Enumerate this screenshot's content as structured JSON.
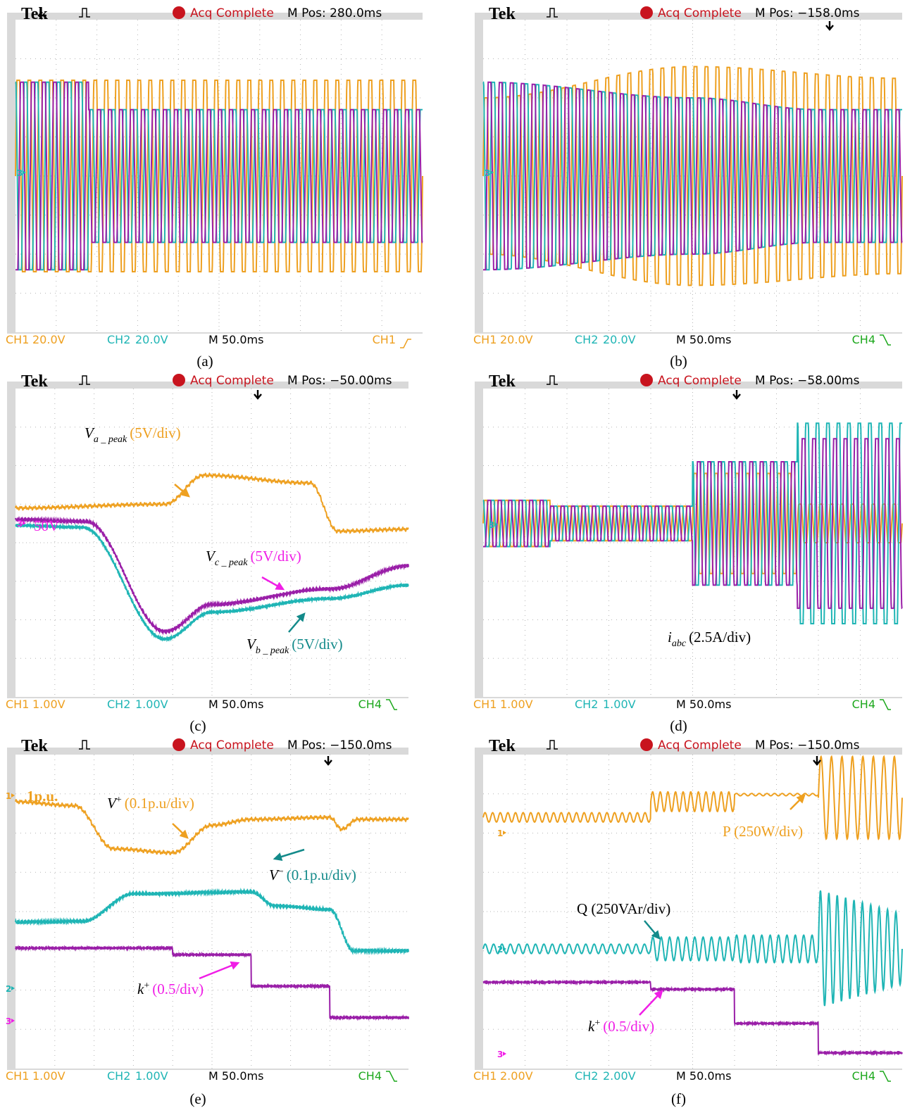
{
  "panels": [
    {
      "header": {
        "brand": "Tek",
        "status": "Acq Complete",
        "mpos": "M Pos: 280.0ms"
      },
      "footer": {
        "ch1": "CH1",
        "ch1_scale": "20.0V",
        "ch2": "CH2",
        "ch2_scale": "20.0V",
        "timebase": "M 50.0ms",
        "trigger": "CH1"
      },
      "markers": [
        "3"
      ],
      "annotations": [],
      "caption": "(a)"
    },
    {
      "header": {
        "brand": "Tek",
        "status": "Acq Complete",
        "mpos": "M Pos: −158.0ms"
      },
      "footer": {
        "ch1": "CH1",
        "ch1_scale": "20.0V",
        "ch2": "CH2",
        "ch2_scale": "20.0V",
        "timebase": "M 50.0ms",
        "trigger": "CH4"
      },
      "markers": [
        "3"
      ],
      "annotations": [],
      "caption": "(b)"
    },
    {
      "header": {
        "brand": "Tek",
        "status": "Acq Complete",
        "mpos": "M Pos: −50.00ms"
      },
      "footer": {
        "ch1": "CH1",
        "ch1_scale": "1.00V",
        "ch2": "CH2",
        "ch2_scale": "1.00V",
        "timebase": "M 50.0ms",
        "trigger": "CH4"
      },
      "markers": [
        "3",
        "50V"
      ],
      "annotations": [
        {
          "symbol": "V",
          "sub": "a _ peak",
          "label": "(5V/div)"
        },
        {
          "symbol": "V",
          "sub": "c _ peak",
          "label": "(5V/div)"
        },
        {
          "symbol": "V",
          "sub": "b _ peak",
          "label": "(5V/div)"
        }
      ],
      "caption": "(c)"
    },
    {
      "header": {
        "brand": "Tek",
        "status": "Acq Complete",
        "mpos": "M Pos: −58.00ms"
      },
      "footer": {
        "ch1": "CH1",
        "ch1_scale": "1.00V",
        "ch2": "CH2",
        "ch2_scale": "1.00V",
        "timebase": "M 50.0ms",
        "trigger": "CH4"
      },
      "markers": [
        "3"
      ],
      "annotations": [
        {
          "symbol": "i",
          "sub": "abc",
          "label": "(2.5A/div)"
        }
      ],
      "caption": "(d)"
    },
    {
      "header": {
        "brand": "Tek",
        "status": "Acq Complete",
        "mpos": "M Pos: −150.0ms"
      },
      "footer": {
        "ch1": "CH1",
        "ch1_scale": "1.00V",
        "ch2": "CH2",
        "ch2_scale": "1.00V",
        "timebase": "M 50.0ms",
        "trigger": "CH4"
      },
      "markers": [
        "1",
        "1p.u.",
        "2",
        "3"
      ],
      "annotations": [
        {
          "symbol": "V",
          "sup": "+",
          "label": "(0.1p.u/div)"
        },
        {
          "symbol": "V",
          "sup": "−",
          "label": "(0.1p.u/div)"
        },
        {
          "symbol": "k",
          "sup": "+",
          "label": "(0.5/div)"
        }
      ],
      "caption": "(e)"
    },
    {
      "header": {
        "brand": "Tek",
        "status": "Acq Complete",
        "mpos": "M Pos: −150.0ms"
      },
      "footer": {
        "ch1": "CH1",
        "ch1_scale": "2.00V",
        "ch2": "CH2",
        "ch2_scale": "2.00V",
        "timebase": "M 50.0ms",
        "trigger": "CH4"
      },
      "markers": [
        "1",
        "2",
        "3"
      ],
      "annotations": [
        {
          "label": "P (250W/div)"
        },
        {
          "label": "Q (250VAr/div)"
        },
        {
          "symbol": "k",
          "sup": "+",
          "label": "(0.5/div)"
        }
      ],
      "caption": "(f)"
    }
  ]
}
